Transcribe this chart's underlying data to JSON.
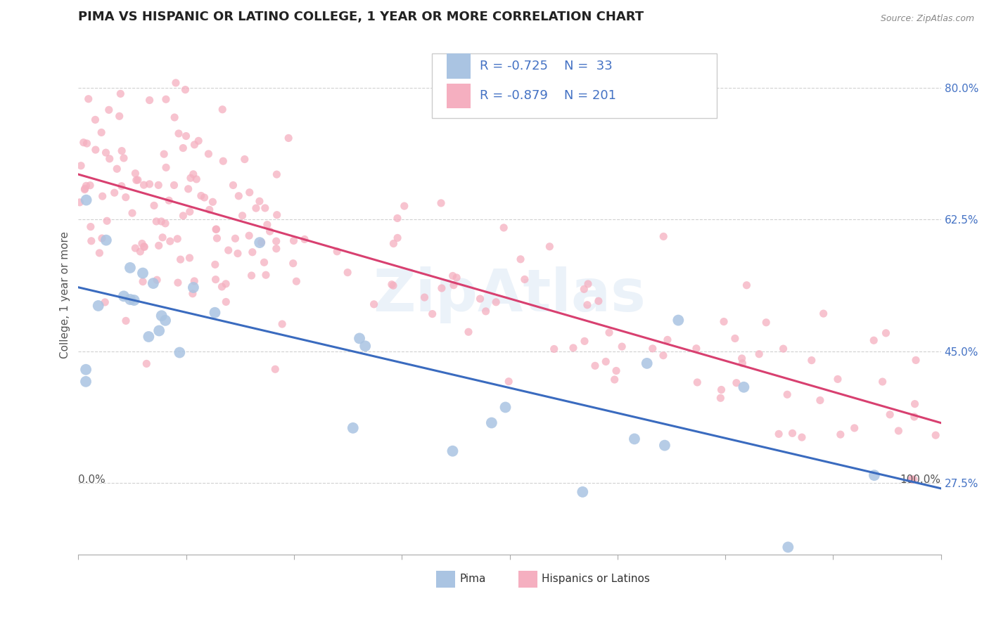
{
  "title": "PIMA VS HISPANIC OR LATINO COLLEGE, 1 YEAR OR MORE CORRELATION CHART",
  "source": "Source: ZipAtlas.com",
  "ylabel": "College, 1 year or more",
  "xlim": [
    0.0,
    1.0
  ],
  "ylim": [
    0.18,
    0.87
  ],
  "yticks": [
    0.275,
    0.45,
    0.625,
    0.8
  ],
  "ytick_labels": [
    "27.5%",
    "45.0%",
    "62.5%",
    "80.0%"
  ],
  "xtick_labels_left": "0.0%",
  "xtick_labels_right": "100.0%",
  "pima_R": -0.725,
  "pima_N": 33,
  "hispanic_R": -0.879,
  "hispanic_N": 201,
  "pima_color": "#aac4e2",
  "hispanic_color": "#f5afc0",
  "pima_line_color": "#3a6bbf",
  "hispanic_line_color": "#d84070",
  "background_color": "#ffffff",
  "grid_color": "#cccccc",
  "legend_text_color": "#4472c4",
  "title_fontsize": 13,
  "axis_label_fontsize": 11,
  "tick_fontsize": 11,
  "legend_fontsize": 13,
  "watermark": "ZipAtlas",
  "pima_scatter_size": 130,
  "hispanic_scatter_size": 65,
  "pima_line_start_y": 0.535,
  "pima_line_end_y": 0.268,
  "hispanic_line_start_y": 0.685,
  "hispanic_line_end_y": 0.355
}
